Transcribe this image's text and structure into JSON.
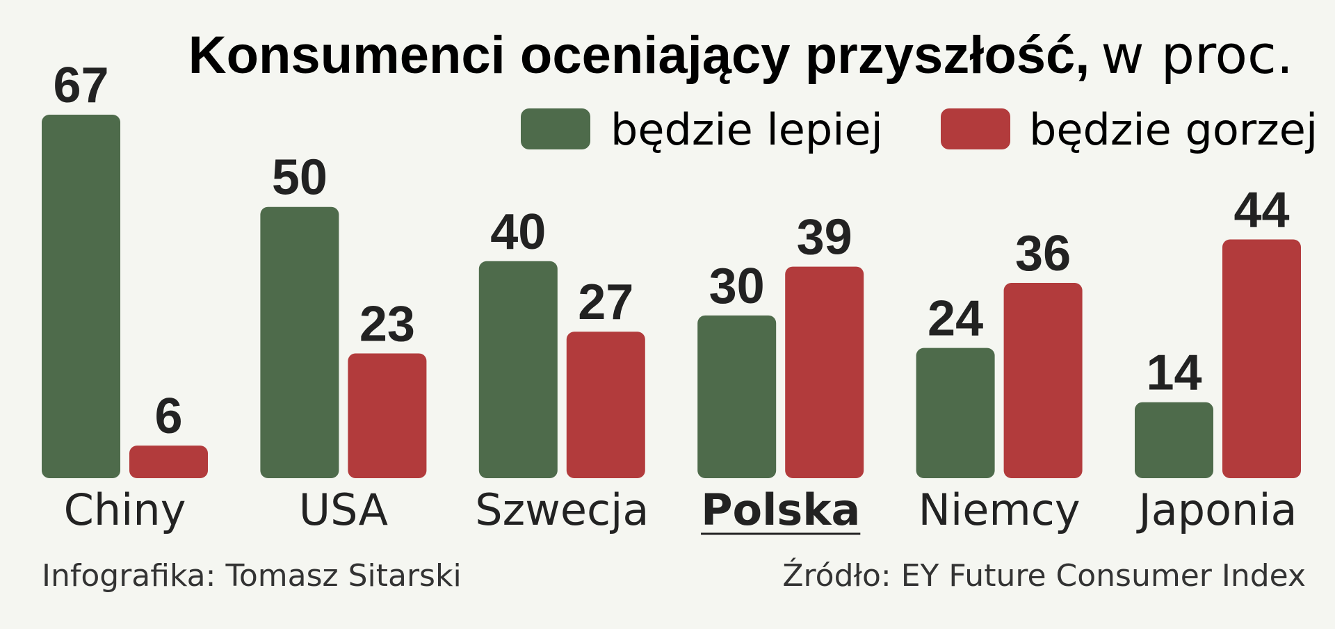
{
  "title": {
    "bold": "Konsumenci oceniający przyszłość,",
    "unit": "w proc."
  },
  "legend": [
    {
      "label": "będzie lepiej",
      "color": "#4e6b4b"
    },
    {
      "label": "będzie gorzej",
      "color": "#b23b3c"
    }
  ],
  "chart_data": {
    "type": "bar",
    "title": "Konsumenci oceniający przyszłość, w proc.",
    "xlabel": "",
    "ylabel": "",
    "ylim": [
      0,
      67
    ],
    "grid": false,
    "legend_position": "top-right",
    "categories": [
      "Chiny",
      "USA",
      "Szwecja",
      "Polska",
      "Niemcy",
      "Japonia"
    ],
    "highlighted_category": "Polska",
    "series": [
      {
        "name": "będzie lepiej",
        "color": "#4e6b4b",
        "values": [
          67,
          50,
          40,
          30,
          24,
          14
        ]
      },
      {
        "name": "będzie gorzej",
        "color": "#b23b3c",
        "values": [
          6,
          23,
          27,
          39,
          36,
          44
        ]
      }
    ]
  },
  "footer": {
    "author": "Infografika: Tomasz Sitarski",
    "source": "Źródło: EY Future Consumer Index"
  }
}
